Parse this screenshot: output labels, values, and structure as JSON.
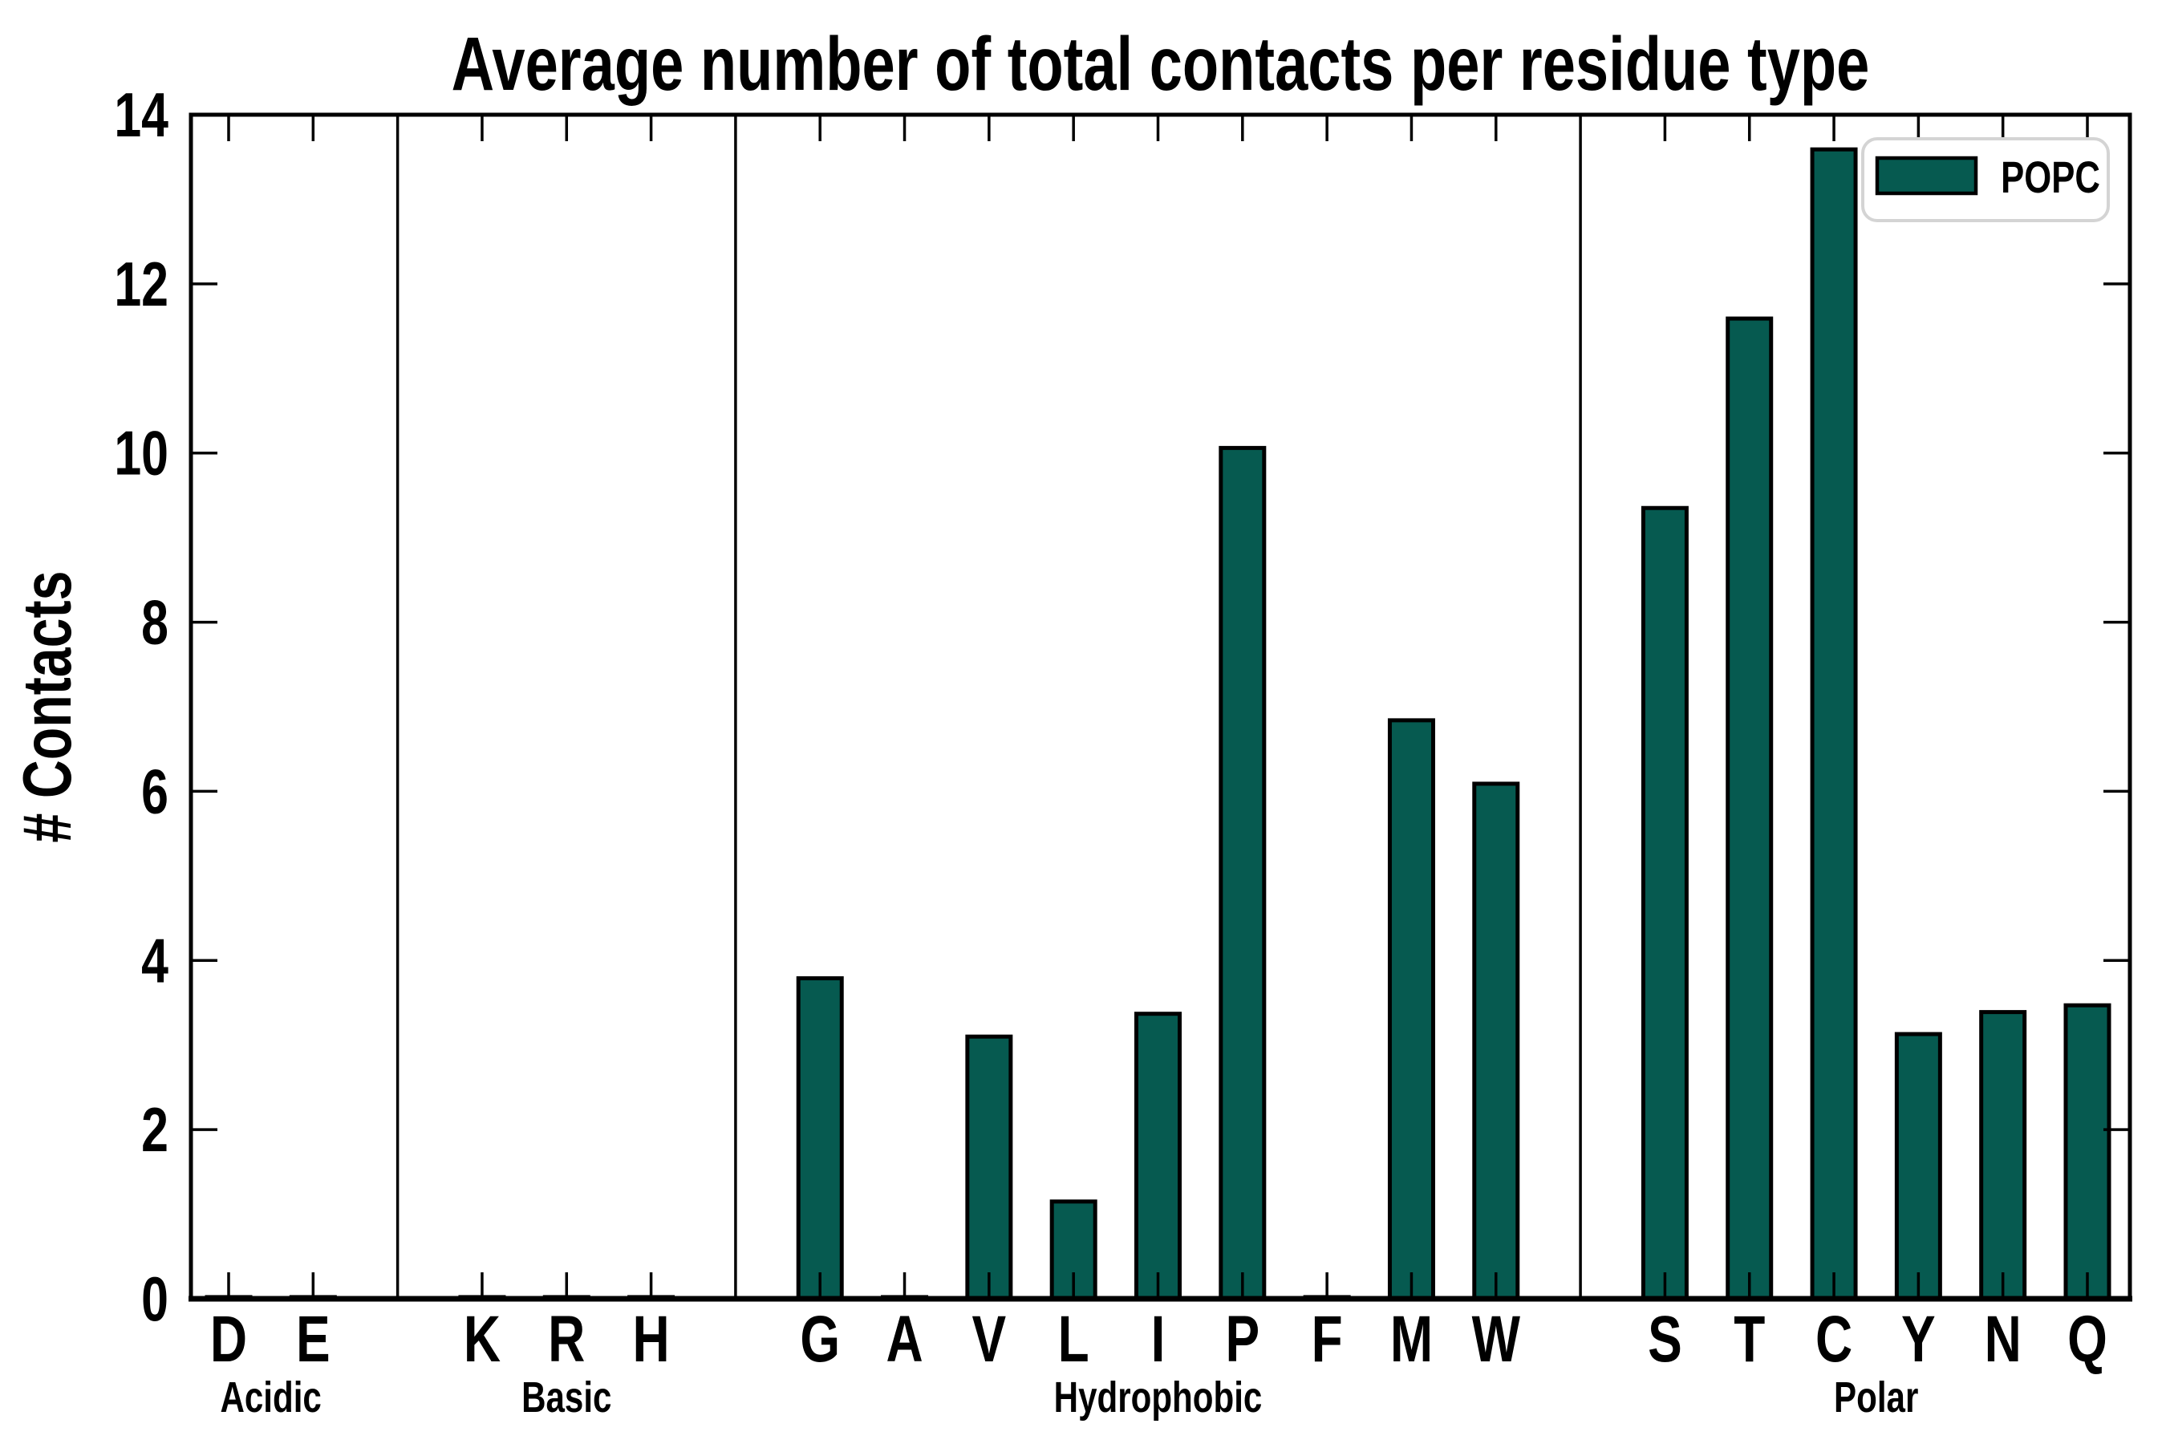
{
  "figure": {
    "background_color": "#ffffff",
    "bar_fill_color": "#065a50",
    "bar_edge_color": "#000000",
    "spine_color": "#000000",
    "divider_color": "#000000",
    "legend_border_color": "#d4d4d4",
    "legend_background_color": "#ffffff"
  },
  "chart_data": {
    "type": "bar",
    "title": "Average number of total contacts per residue type",
    "xlabel": "",
    "ylabel": "# Contacts",
    "ylim": [
      0,
      14
    ],
    "yticks": [
      0,
      2,
      4,
      6,
      8,
      10,
      12,
      14
    ],
    "grid": false,
    "legend": {
      "position": "upper right",
      "entries": [
        {
          "label": "POPC",
          "color": "#065a50"
        }
      ]
    },
    "groups": [
      {
        "name": "Acidic",
        "categories": [
          "D",
          "E"
        ],
        "values": [
          0.02,
          0.02
        ]
      },
      {
        "name": "Basic",
        "categories": [
          "K",
          "R",
          "H"
        ],
        "values": [
          0.02,
          0.02,
          0.02
        ]
      },
      {
        "name": "Hydrophobic",
        "categories": [
          "G",
          "A",
          "V",
          "L",
          "I",
          "P",
          "F",
          "M",
          "W"
        ],
        "values": [
          3.79,
          0.02,
          3.1,
          1.15,
          3.37,
          10.06,
          0.02,
          6.84,
          6.09
        ]
      },
      {
        "name": "Polar",
        "categories": [
          "S",
          "T",
          "C",
          "Y",
          "N",
          "Q"
        ],
        "values": [
          9.35,
          11.59,
          13.59,
          3.13,
          3.39,
          3.47
        ]
      }
    ]
  }
}
